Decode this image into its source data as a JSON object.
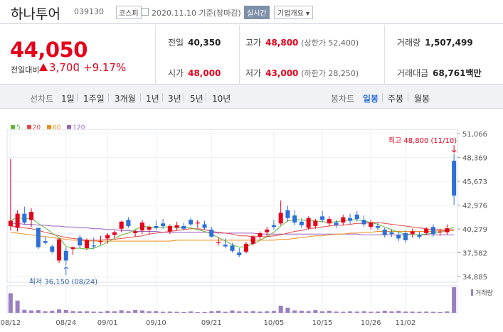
{
  "header": {
    "name": "하나투어",
    "code": "039130",
    "market": "코스피",
    "date": "2020.11.10 기준(장마감)",
    "realtime": "실시간",
    "company": "기업개요 ▾"
  },
  "quote": {
    "price": "44,050",
    "compare_label": "전일대비",
    "change": "3,700",
    "change_pct": "+9.17%",
    "prev_label": "전일",
    "prev": "40,350",
    "high_label": "고가",
    "high": "48,800",
    "high_note": "(상한가 52,400)",
    "volume_label": "거래량",
    "volume": "1,507,499",
    "open_label": "시가",
    "open": "48,000",
    "low_label": "저가",
    "low": "43,000",
    "low_note": "(하한가 28,250)",
    "amount_label": "거래대금",
    "amount": "68,761",
    "amount_unit": "백만"
  },
  "periods": {
    "label": "선차트",
    "items": [
      "1일",
      "1주일",
      "3개월",
      "1년",
      "3년",
      "5년",
      "10년"
    ]
  },
  "candles_tab": {
    "label": "봉차트",
    "items": [
      "일봉",
      "주봉",
      "월봉"
    ],
    "active": "일봉"
  },
  "colors": {
    "up": "#e5001b",
    "down": "#2e6fd8",
    "ma5": "#5fb336",
    "ma20": "#e04646",
    "ma60": "#f08c1e",
    "ma120": "#9b5fc0"
  },
  "chart_data": {
    "type": "candlestick",
    "ma_legend": [
      {
        "name": "5",
        "color": "#5fb336"
      },
      {
        "name": "20",
        "color": "#e04646"
      },
      {
        "name": "60",
        "color": "#f08c1e"
      },
      {
        "name": "120",
        "color": "#9b5fc0"
      }
    ],
    "y_ticks": [
      51066,
      48369,
      45673,
      42976,
      40279,
      37582,
      34885
    ],
    "y_tick_labels": [
      "51,066",
      "48,369",
      "45,673",
      "42,976",
      "40,279",
      "37,582",
      "34,885"
    ],
    "ylim": [
      34885,
      51066
    ],
    "x_tick_labels": [
      "08/12",
      "08/24",
      "09/01",
      "09/10",
      "09/21",
      "10/05",
      "10/15",
      "10/26",
      "11/02"
    ],
    "x_tick_index": [
      0,
      8,
      14,
      21,
      29,
      38,
      45,
      52,
      57
    ],
    "max_label": "최고 48,800 (11/10)",
    "max_index": 64,
    "min_label": "최저 36,150 (08/24)",
    "min_index": 8,
    "volume_label": "거래량",
    "candles": [
      {
        "o": 40600,
        "h": 48200,
        "l": 40100,
        "c": 41200,
        "v": 1150000
      },
      {
        "o": 40400,
        "h": 42400,
        "l": 40000,
        "c": 42000,
        "v": 720000
      },
      {
        "o": 42000,
        "h": 42800,
        "l": 40800,
        "c": 41000,
        "v": 180000
      },
      {
        "o": 41300,
        "h": 42600,
        "l": 40500,
        "c": 42200,
        "v": 140000
      },
      {
        "o": 40400,
        "h": 40400,
        "l": 38000,
        "c": 38200,
        "v": 160000
      },
      {
        "o": 38900,
        "h": 39400,
        "l": 38500,
        "c": 38700,
        "v": 90000
      },
      {
        "o": 38300,
        "h": 38500,
        "l": 37500,
        "c": 37700,
        "v": 120000
      },
      {
        "o": 36700,
        "h": 39200,
        "l": 36400,
        "c": 39100,
        "v": 200000
      },
      {
        "o": 37800,
        "h": 38200,
        "l": 36150,
        "c": 36700,
        "v": 170000
      },
      {
        "o": 38000,
        "h": 38300,
        "l": 37300,
        "c": 38200,
        "v": 100000
      },
      {
        "o": 39300,
        "h": 39600,
        "l": 38100,
        "c": 38400,
        "v": 80000
      },
      {
        "o": 38100,
        "h": 39200,
        "l": 37900,
        "c": 39000,
        "v": 90000
      },
      {
        "o": 38400,
        "h": 39300,
        "l": 38000,
        "c": 38300,
        "v": 70000
      },
      {
        "o": 38800,
        "h": 39500,
        "l": 38500,
        "c": 38900,
        "v": 60000
      },
      {
        "o": 39200,
        "h": 39800,
        "l": 38600,
        "c": 39600,
        "v": 110000
      },
      {
        "o": 39600,
        "h": 40100,
        "l": 39200,
        "c": 39900,
        "v": 90000
      },
      {
        "o": 40300,
        "h": 41200,
        "l": 39900,
        "c": 41100,
        "v": 150000
      },
      {
        "o": 41300,
        "h": 41600,
        "l": 40400,
        "c": 40600,
        "v": 100000
      },
      {
        "o": 39800,
        "h": 40200,
        "l": 39400,
        "c": 40000,
        "v": 170000
      },
      {
        "o": 40100,
        "h": 41300,
        "l": 39700,
        "c": 41000,
        "v": 140000
      },
      {
        "o": 40200,
        "h": 40700,
        "l": 39600,
        "c": 40500,
        "v": 90000
      },
      {
        "o": 40600,
        "h": 41200,
        "l": 40200,
        "c": 40400,
        "v": 100000
      },
      {
        "o": 40900,
        "h": 41400,
        "l": 40300,
        "c": 40600,
        "v": 60000
      },
      {
        "o": 40000,
        "h": 40800,
        "l": 39700,
        "c": 40600,
        "v": 70000
      },
      {
        "o": 40400,
        "h": 41100,
        "l": 40100,
        "c": 40700,
        "v": 60000
      },
      {
        "o": 40600,
        "h": 41000,
        "l": 40100,
        "c": 40300,
        "v": 50000
      },
      {
        "o": 41300,
        "h": 41500,
        "l": 40600,
        "c": 40800,
        "v": 80000
      },
      {
        "o": 40900,
        "h": 41300,
        "l": 40400,
        "c": 41000,
        "v": 40000
      },
      {
        "o": 40800,
        "h": 41200,
        "l": 40200,
        "c": 40400,
        "v": 50000
      },
      {
        "o": 40200,
        "h": 40500,
        "l": 39300,
        "c": 39400,
        "v": 90000
      },
      {
        "o": 38700,
        "h": 39300,
        "l": 38400,
        "c": 38800,
        "v": 120000
      },
      {
        "o": 38500,
        "h": 39200,
        "l": 38100,
        "c": 38300,
        "v": 60000
      },
      {
        "o": 38400,
        "h": 38700,
        "l": 37600,
        "c": 37800,
        "v": 140000
      },
      {
        "o": 37600,
        "h": 38100,
        "l": 37100,
        "c": 37300,
        "v": 90000
      },
      {
        "o": 37700,
        "h": 38800,
        "l": 37500,
        "c": 38600,
        "v": 80000
      },
      {
        "o": 38600,
        "h": 39600,
        "l": 38400,
        "c": 39400,
        "v": 100000
      },
      {
        "o": 39400,
        "h": 40000,
        "l": 39000,
        "c": 39800,
        "v": 70000
      },
      {
        "o": 39900,
        "h": 40500,
        "l": 39400,
        "c": 40200,
        "v": 90000
      },
      {
        "o": 40700,
        "h": 41300,
        "l": 40200,
        "c": 40500,
        "v": 110000
      },
      {
        "o": 40900,
        "h": 43500,
        "l": 40700,
        "c": 42100,
        "v": 420000
      },
      {
        "o": 42400,
        "h": 42900,
        "l": 41100,
        "c": 41500,
        "v": 300000
      },
      {
        "o": 41800,
        "h": 42400,
        "l": 40700,
        "c": 41000,
        "v": 140000
      },
      {
        "o": 41100,
        "h": 41500,
        "l": 40400,
        "c": 40700,
        "v": 120000
      },
      {
        "o": 40400,
        "h": 41700,
        "l": 40200,
        "c": 41500,
        "v": 100000
      },
      {
        "o": 40600,
        "h": 41400,
        "l": 40300,
        "c": 41200,
        "v": 160000
      },
      {
        "o": 41700,
        "h": 42300,
        "l": 41000,
        "c": 41300,
        "v": 90000
      },
      {
        "o": 40900,
        "h": 41700,
        "l": 40600,
        "c": 41400,
        "v": 120000
      },
      {
        "o": 41000,
        "h": 41300,
        "l": 40400,
        "c": 40700,
        "v": 70000
      },
      {
        "o": 41000,
        "h": 41900,
        "l": 40700,
        "c": 41600,
        "v": 60000
      },
      {
        "o": 41500,
        "h": 42000,
        "l": 40800,
        "c": 41200,
        "v": 80000
      },
      {
        "o": 41900,
        "h": 42300,
        "l": 41100,
        "c": 41400,
        "v": 70000
      },
      {
        "o": 41300,
        "h": 41800,
        "l": 40500,
        "c": 40800,
        "v": 90000
      },
      {
        "o": 40500,
        "h": 41300,
        "l": 40200,
        "c": 41000,
        "v": 60000
      },
      {
        "o": 40600,
        "h": 41000,
        "l": 40100,
        "c": 40400,
        "v": 70000
      },
      {
        "o": 40200,
        "h": 40400,
        "l": 39300,
        "c": 39600,
        "v": 120000
      },
      {
        "o": 39900,
        "h": 40200,
        "l": 39400,
        "c": 39700,
        "v": 80000
      },
      {
        "o": 39600,
        "h": 39900,
        "l": 38900,
        "c": 39200,
        "v": 110000
      },
      {
        "o": 39800,
        "h": 40100,
        "l": 38700,
        "c": 39000,
        "v": 70000
      },
      {
        "o": 39700,
        "h": 40300,
        "l": 39300,
        "c": 40000,
        "v": 70000
      },
      {
        "o": 39600,
        "h": 40000,
        "l": 39200,
        "c": 39400,
        "v": 60000
      },
      {
        "o": 39800,
        "h": 40500,
        "l": 39600,
        "c": 40300,
        "v": 70000
      },
      {
        "o": 40500,
        "h": 40800,
        "l": 39400,
        "c": 39700,
        "v": 60000
      },
      {
        "o": 39900,
        "h": 40300,
        "l": 39500,
        "c": 40000,
        "v": 50000
      },
      {
        "o": 39900,
        "h": 40800,
        "l": 39600,
        "c": 40350,
        "v": 80000
      },
      {
        "o": 48000,
        "h": 48800,
        "l": 43000,
        "c": 44050,
        "v": 1507499
      }
    ],
    "ma5": [
      41200,
      41600,
      41400,
      41500,
      40900,
      40400,
      39800,
      39300,
      38300,
      38100,
      38100,
      38000,
      38100,
      38400,
      38800,
      39200,
      39600,
      39800,
      40200,
      40600,
      40500,
      40400,
      40500,
      40500,
      40500,
      40400,
      40400,
      40200,
      40000,
      39700,
      39300,
      38900,
      38500,
      38200,
      38300,
      38600,
      39000,
      39400,
      39900,
      40600,
      41200,
      41300,
      41300,
      41200,
      41200,
      41100,
      41000,
      41100,
      41200,
      41300,
      41300,
      41200,
      41000,
      40800,
      40500,
      40200,
      39900,
      39700,
      39600,
      39600,
      39700,
      39800,
      39900,
      40100,
      40500
    ],
    "ma20": [
      40600,
      40500,
      40400,
      40300,
      40100,
      39900,
      39700,
      39500,
      39300,
      39200,
      39100,
      39000,
      39000,
      39000,
      39100,
      39100,
      39200,
      39300,
      39400,
      39500,
      39700,
      39800,
      39900,
      40000,
      40100,
      40200,
      40300,
      40300,
      40200,
      40000,
      39900,
      39800,
      39700,
      39500,
      39500,
      39400,
      39400,
      39400,
      39500,
      39600,
      39800,
      40000,
      40100,
      40300,
      40400,
      40500,
      40600,
      40700,
      40700,
      40800,
      40900,
      40900,
      41000,
      41000,
      40900,
      40800,
      40700,
      40600,
      40500,
      40400,
      40300,
      40200,
      40200,
      40100,
      40200
    ],
    "ma60": [
      39900,
      39800,
      39700,
      39600,
      39500,
      39400,
      39300,
      39200,
      39100,
      39000,
      39000,
      38900,
      38900,
      38900,
      38900,
      38900,
      38900,
      38900,
      38900,
      38900,
      38900,
      38900,
      38900,
      38900,
      39000,
      39000,
      39000,
      39000,
      39000,
      39000,
      39000,
      39000,
      39000,
      39000,
      39000,
      39000,
      39000,
      39000,
      39000,
      39100,
      39100,
      39200,
      39300,
      39400,
      39500,
      39500,
      39600,
      39700,
      39700,
      39800,
      39800,
      39900,
      39900,
      40000,
      40000,
      40000,
      40000,
      40000,
      40000,
      40000,
      40000,
      40000,
      40100,
      40100,
      40100
    ],
    "ma120": [
      40900,
      40900,
      40800,
      40800,
      40700,
      40700,
      40600,
      40600,
      40500,
      40500,
      40400,
      40400,
      40300,
      40300,
      40200,
      40200,
      40100,
      40100,
      40000,
      40000,
      40000,
      40000,
      39900,
      39900,
      39900,
      39900,
      39900,
      39900,
      39900,
      39900,
      39800,
      39800,
      39800,
      39800,
      39800,
      39800,
      39700,
      39700,
      39700,
      39700,
      39700,
      39700,
      39700,
      39700,
      39700,
      39700,
      39700,
      39700,
      39700,
      39700,
      39700,
      39600,
      39600,
      39600,
      39600,
      39600,
      39600,
      39600,
      39600,
      39600,
      39600,
      39600,
      39600,
      39600,
      39600
    ]
  }
}
